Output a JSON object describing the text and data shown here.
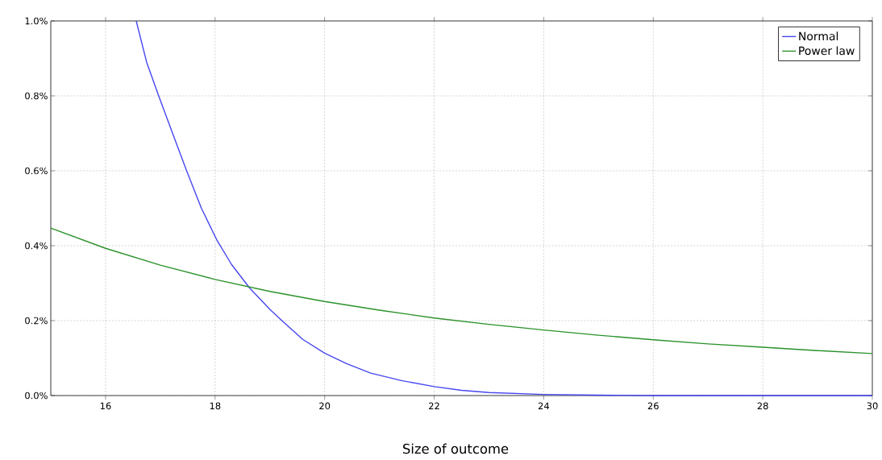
{
  "chart_data": {
    "type": "line",
    "xlabel": "Size of outcome",
    "xlim": [
      15,
      30
    ],
    "ylim": [
      0,
      1.0
    ],
    "xticks": [
      16,
      18,
      20,
      22,
      24,
      26,
      28,
      30
    ],
    "yticks": [
      {
        "value": 0,
        "label": "0.0%"
      },
      {
        "value": 0.2,
        "label": "0.2%"
      },
      {
        "value": 0.4,
        "label": "0.4%"
      },
      {
        "value": 0.6,
        "label": "0.6%"
      },
      {
        "value": 0.8,
        "label": "0.8%"
      },
      {
        "value": 1.0,
        "label": "1.0%"
      }
    ],
    "grid": true,
    "legend": "top right",
    "series": [
      {
        "name": "Normal",
        "color": "#4646f0",
        "x": [
          16.56,
          16.75,
          16.97,
          17.25,
          17.48,
          17.75,
          18.04,
          18.3,
          18.63,
          19.0,
          19.22,
          19.6,
          20.0,
          20.4,
          20.84,
          21.4,
          22,
          22.5,
          23,
          24,
          25,
          26,
          28,
          30
        ],
        "values": [
          1.0,
          0.89,
          0.8,
          0.69,
          0.6,
          0.5,
          0.413,
          0.35,
          0.287,
          0.23,
          0.2,
          0.15,
          0.113,
          0.085,
          0.06,
          0.04,
          0.024,
          0.014,
          0.008,
          0.003,
          0.001,
          0,
          0,
          0
        ]
      },
      {
        "name": "Power law",
        "color": "#2a922a",
        "x": [
          15,
          16,
          17,
          18,
          19,
          20,
          21,
          22,
          23,
          24,
          25,
          26,
          27,
          28,
          29,
          30
        ],
        "values": [
          0.447,
          0.393,
          0.348,
          0.31,
          0.278,
          0.251,
          0.228,
          0.207,
          0.19,
          0.175,
          0.161,
          0.149,
          0.138,
          0.129,
          0.12,
          0.112
        ]
      }
    ]
  }
}
